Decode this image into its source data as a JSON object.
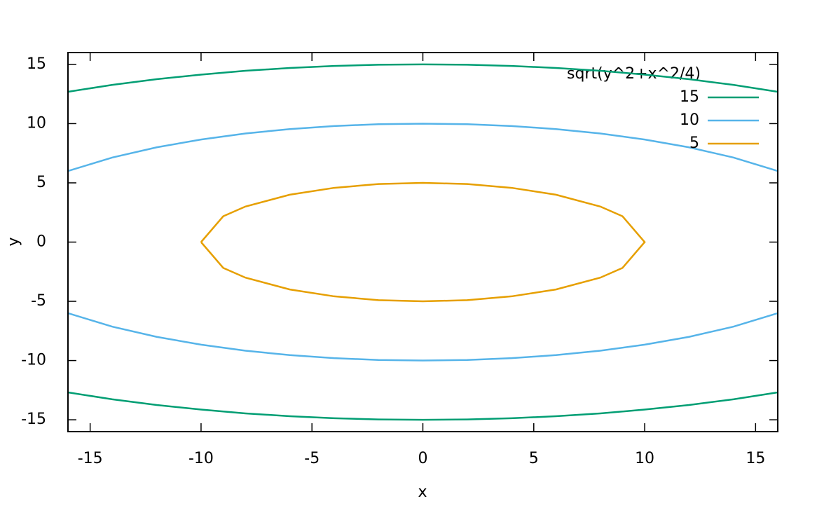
{
  "chart_data": {
    "type": "line",
    "xlabel": "x",
    "ylabel": "y",
    "legend_title": "sqrt(y^2+x^2/4)",
    "legend": "top-right",
    "xlim": [
      -16,
      16
    ],
    "ylim": [
      -16,
      16
    ],
    "xticks": [
      -15,
      -10,
      -5,
      0,
      5,
      10,
      15
    ],
    "yticks": [
      -15,
      -10,
      -5,
      0,
      5,
      10,
      15
    ],
    "series": [
      {
        "name": "15",
        "color": "#009e73",
        "x": [
          -16,
          -14,
          -12,
          -10,
          -8,
          -6,
          -4,
          -2,
          0,
          2,
          4,
          6,
          8,
          10,
          12,
          14,
          16,
          null,
          -16,
          -14,
          -12,
          -10,
          -8,
          -6,
          -4,
          -2,
          0,
          2,
          4,
          6,
          8,
          10,
          12,
          14,
          16
        ],
        "values": [
          12.69,
          13.27,
          13.75,
          14.14,
          14.46,
          14.7,
          14.87,
          14.97,
          15,
          14.97,
          14.87,
          14.7,
          14.46,
          14.14,
          13.75,
          13.27,
          12.69,
          null,
          -12.69,
          -13.27,
          -13.75,
          -14.14,
          -14.46,
          -14.7,
          -14.87,
          -14.97,
          -15,
          -14.97,
          -14.87,
          -14.7,
          -14.46,
          -14.14,
          -13.75,
          -13.27,
          -12.69
        ]
      },
      {
        "name": "10",
        "color": "#56b4e9",
        "x": [
          -16,
          -14,
          -12,
          -10,
          -8,
          -6,
          -4,
          -2,
          0,
          2,
          4,
          6,
          8,
          10,
          12,
          14,
          16,
          null,
          -16,
          -14,
          -12,
          -10,
          -8,
          -6,
          -4,
          -2,
          0,
          2,
          4,
          6,
          8,
          10,
          12,
          14,
          16
        ],
        "values": [
          6,
          7.14,
          8,
          8.66,
          9.17,
          9.54,
          9.8,
          9.95,
          10,
          9.95,
          9.8,
          9.54,
          9.17,
          8.66,
          8,
          7.14,
          6,
          null,
          -6,
          -7.14,
          -8,
          -8.66,
          -9.17,
          -9.54,
          -9.8,
          -9.95,
          -10,
          -9.95,
          -9.8,
          -9.54,
          -9.17,
          -8.66,
          -8,
          -7.14,
          -6
        ]
      },
      {
        "name": "5",
        "color": "#e69f00",
        "x": [
          -10,
          -9,
          -8,
          -6,
          -4,
          -2,
          0,
          2,
          4,
          6,
          8,
          9,
          10,
          9,
          8,
          6,
          4,
          2,
          0,
          -2,
          -4,
          -6,
          -8,
          -9,
          -10
        ],
        "values": [
          0,
          2.18,
          3,
          4,
          4.58,
          4.9,
          5,
          4.9,
          4.58,
          4,
          3,
          2.18,
          0,
          -2.18,
          -3,
          -4,
          -4.58,
          -4.9,
          -5,
          -4.9,
          -4.58,
          -4,
          -3,
          -2.18,
          0
        ]
      }
    ]
  }
}
